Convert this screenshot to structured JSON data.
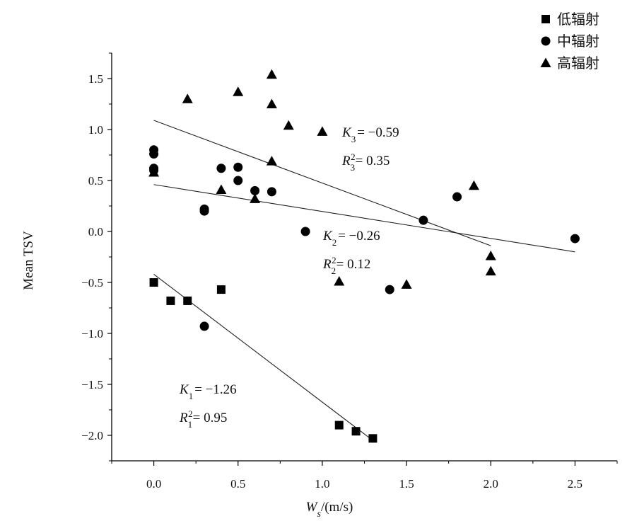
{
  "chart_data": {
    "type": "scatter",
    "title": "",
    "xlabel": "W",
    "xlabel_sub": "s",
    "xlabel_unit": "/(m/s)",
    "ylabel": "Mean TSV",
    "xlim": [
      -0.25,
      2.75
    ],
    "ylim": [
      -2.25,
      1.75
    ],
    "xticks": [
      0.0,
      0.5,
      1.0,
      1.5,
      2.0,
      2.5
    ],
    "xtick_labels": [
      "0.0",
      "0.5",
      "1.0",
      "1.5",
      "2.0",
      "2.5"
    ],
    "yticks": [
      -2.0,
      -1.5,
      -1.0,
      -0.5,
      0.0,
      0.5,
      1.0,
      1.5
    ],
    "ytick_labels": [
      "-2.0",
      "-1.5",
      "-1.0",
      "-0.5",
      "0.0",
      "0.5",
      "1.0",
      "1.5"
    ],
    "legend_position": "top-right",
    "series": [
      {
        "name": "低辐射",
        "marker": "square",
        "color": "#000000",
        "points": [
          [
            0.0,
            -0.5
          ],
          [
            0.1,
            -0.68
          ],
          [
            0.2,
            -0.68
          ],
          [
            0.4,
            -0.57
          ],
          [
            1.1,
            -1.9
          ],
          [
            1.2,
            -1.96
          ],
          [
            1.3,
            -2.03
          ]
        ],
        "fit": {
          "x": [
            0.0,
            1.3
          ],
          "y": [
            -0.42,
            -2.05
          ]
        },
        "annotation": {
          "K_label": "K",
          "K_sub": "1",
          "K_text": "= −1.26",
          "R_label": "R",
          "R_sub": "1",
          "R_sup": "2",
          "R_text": "= 0.95"
        }
      },
      {
        "name": "中辐射",
        "marker": "circle",
        "color": "#000000",
        "points": [
          [
            0.0,
            0.8
          ],
          [
            0.0,
            0.76
          ],
          [
            0.0,
            0.62
          ],
          [
            0.0,
            0.6
          ],
          [
            0.3,
            0.22
          ],
          [
            0.3,
            0.2
          ],
          [
            0.3,
            -0.93
          ],
          [
            0.4,
            0.62
          ],
          [
            0.5,
            0.63
          ],
          [
            0.5,
            0.5
          ],
          [
            0.6,
            0.4
          ],
          [
            0.7,
            0.39
          ],
          [
            0.9,
            0.0
          ],
          [
            1.4,
            -0.57
          ],
          [
            1.6,
            0.11
          ],
          [
            1.8,
            0.34
          ],
          [
            2.5,
            -0.07
          ]
        ],
        "fit": {
          "x": [
            0.0,
            2.5
          ],
          "y": [
            0.46,
            -0.2
          ]
        },
        "annotation": {
          "K_label": "K",
          "K_sub": "2",
          "K_text": "= −0.26",
          "R_label": "R",
          "R_sub": "2",
          "R_sup": "2",
          "R_text": "= 0.12"
        }
      },
      {
        "name": "高辐射",
        "marker": "triangle",
        "color": "#000000",
        "points": [
          [
            0.0,
            0.58
          ],
          [
            0.2,
            1.3
          ],
          [
            0.4,
            0.41
          ],
          [
            0.5,
            1.37
          ],
          [
            0.6,
            0.32
          ],
          [
            0.7,
            1.54
          ],
          [
            0.7,
            1.25
          ],
          [
            0.7,
            0.69
          ],
          [
            0.8,
            1.04
          ],
          [
            1.0,
            0.98
          ],
          [
            1.1,
            -0.49
          ],
          [
            1.5,
            -0.52
          ],
          [
            1.9,
            0.45
          ],
          [
            2.0,
            -0.24
          ],
          [
            2.0,
            -0.39
          ]
        ],
        "fit": {
          "x": [
            0.0,
            2.0
          ],
          "y": [
            1.09,
            -0.14
          ]
        },
        "annotation": {
          "K_label": "K",
          "K_sub": "3",
          "K_text": "= −0.59",
          "R_label": "R",
          "R_sub": "3",
          "R_sup": "2",
          "R_text": "= 0.35"
        }
      }
    ]
  }
}
